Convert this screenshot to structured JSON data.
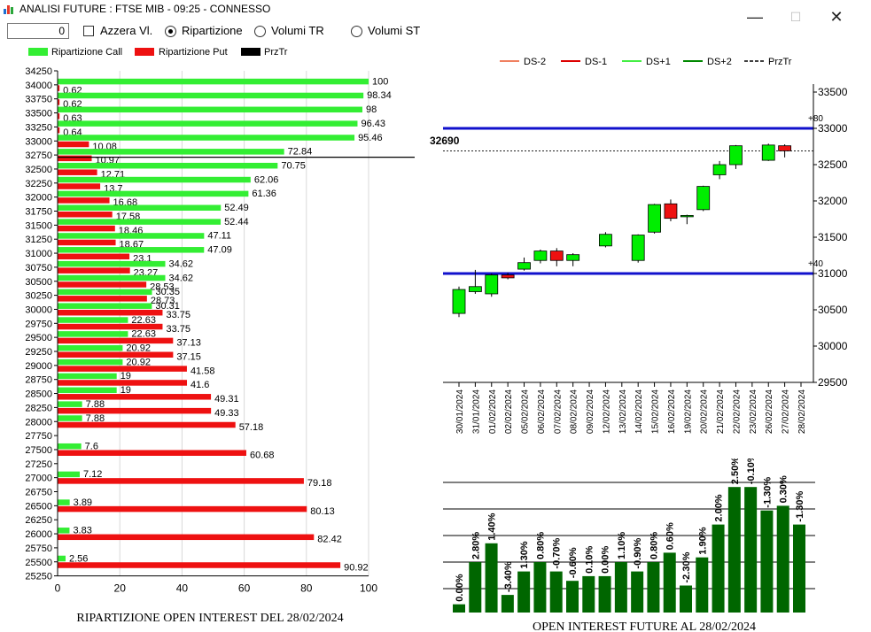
{
  "window": {
    "title": "ANALISI FUTURE : FTSE MIB - 09:25 - CONNESSO",
    "minimize": "—",
    "maximize": "☐",
    "close": "✕"
  },
  "toolbar": {
    "spin_value": "0",
    "reset_label": "Azzera Vl.",
    "radio_ripartizione": "Ripartizione",
    "radio_volumi_tr": "Volumi TR",
    "radio_volumi_st": "Volumi ST",
    "selected": "Ripartizione"
  },
  "colors": {
    "call": "#33ee33",
    "put": "#ee1111",
    "prztr": "#000000",
    "candle_up": "#00ee00",
    "candle_down": "#ee1111",
    "level_line": "#1111cc",
    "oi_bar": "#006600"
  },
  "left_chart": {
    "legend": [
      "Ripartizione Call",
      "Ripartizione Put",
      "PrzTr"
    ],
    "caption": "RIPARTIZIONE OPEN INTEREST DEL 28/02/2024",
    "x_ticks": [
      "0",
      "20",
      "40",
      "60",
      "80",
      "100"
    ]
  },
  "right_chart": {
    "legend": [
      "DS-2",
      "DS-1",
      "DS+1",
      "DS+2",
      "PrzTr"
    ],
    "price_label": "32690",
    "level_labels": [
      "+80",
      "+40"
    ],
    "y_ticks": [
      "33500",
      "33000",
      "32500",
      "32000",
      "31500",
      "31000",
      "30500",
      "30000",
      "29500"
    ]
  },
  "bottom_chart": {
    "caption": "OPEN INTEREST FUTURE AL 28/02/2024"
  },
  "chart_data": [
    {
      "type": "bar",
      "orientation": "horizontal",
      "title": "RIPARTIZIONE OPEN INTEREST DEL 28/02/2024",
      "xlim": [
        0,
        100
      ],
      "grid": true,
      "legend_position": "top-left",
      "prztr_strike": 32750,
      "categories": [
        "34250",
        "34000",
        "33750",
        "33500",
        "33250",
        "33000",
        "32750",
        "32500",
        "32250",
        "32000",
        "31750",
        "31500",
        "31250",
        "31000",
        "30750",
        "30500",
        "30250",
        "30000",
        "29750",
        "29500",
        "29250",
        "29000",
        "28750",
        "28500",
        "28250",
        "28000",
        "27750",
        "27500",
        "27250",
        "27000",
        "26750",
        "26500",
        "26250",
        "26000",
        "25750",
        "25500",
        "25250"
      ],
      "series": [
        {
          "name": "Ripartizione Call",
          "values": [
            null,
            100,
            98.34,
            98,
            96.43,
            95.46,
            72.84,
            70.75,
            62.06,
            61.36,
            52.49,
            52.44,
            47.11,
            47.09,
            34.62,
            34.62,
            30.35,
            30.31,
            22.63,
            22.63,
            20.92,
            20.92,
            19,
            19,
            7.88,
            7.88,
            null,
            7.6,
            null,
            7.12,
            null,
            3.89,
            null,
            3.83,
            null,
            2.56,
            null
          ]
        },
        {
          "name": "Ripartizione Put",
          "values": [
            null,
            0.62,
            0.62,
            0.63,
            0.64,
            10.08,
            10.97,
            12.71,
            13.7,
            16.68,
            17.58,
            18.46,
            18.67,
            23.1,
            23.27,
            28.53,
            28.73,
            33.75,
            33.75,
            37.13,
            37.15,
            41.58,
            41.6,
            49.31,
            49.33,
            57.18,
            null,
            60.68,
            null,
            79.18,
            null,
            80.13,
            null,
            82.42,
            null,
            90.92,
            null
          ]
        }
      ]
    },
    {
      "type": "candlestick",
      "ylim": [
        29500,
        33500
      ],
      "legend_position": "top",
      "series_names": [
        "DS-2",
        "DS-1",
        "DS+1",
        "DS+2",
        "PrzTr"
      ],
      "last_price": 32690,
      "levels": [
        {
          "label": "+80",
          "value": 33000
        },
        {
          "label": "+40",
          "value": 31000
        }
      ],
      "categories": [
        "30/01/2024",
        "31/01/2024",
        "01/02/2024",
        "02/02/2024",
        "05/02/2024",
        "06/02/2024",
        "07/02/2024",
        "08/02/2024",
        "09/02/2024",
        "12/02/2024",
        "13/02/2024",
        "14/02/2024",
        "15/02/2024",
        "16/02/2024",
        "19/02/2024",
        "20/02/2024",
        "21/02/2024",
        "22/02/2024",
        "23/02/2024",
        "26/02/2024",
        "27/02/2024",
        "28/02/2024"
      ],
      "candles": [
        {
          "o": 30450,
          "h": 30820,
          "l": 30400,
          "c": 30780
        },
        {
          "o": 30750,
          "h": 31050,
          "l": 30720,
          "c": 30820
        },
        {
          "o": 30720,
          "h": 31000,
          "l": 30680,
          "c": 30980
        },
        {
          "o": 30980,
          "h": 31010,
          "l": 30920,
          "c": 30940
        },
        {
          "o": 31060,
          "h": 31220,
          "l": 31040,
          "c": 31150
        },
        {
          "o": 31180,
          "h": 31330,
          "l": 31140,
          "c": 31310
        },
        {
          "o": 31310,
          "h": 31350,
          "l": 31100,
          "c": 31180
        },
        {
          "o": 31180,
          "h": 31280,
          "l": 31100,
          "c": 31260
        },
        null,
        {
          "o": 31380,
          "h": 31570,
          "l": 31360,
          "c": 31540
        },
        null,
        {
          "o": 31180,
          "h": 31540,
          "l": 31150,
          "c": 31530
        },
        {
          "o": 31570,
          "h": 31960,
          "l": 31550,
          "c": 31950
        },
        {
          "o": 31960,
          "h": 32020,
          "l": 31720,
          "c": 31760
        },
        {
          "o": 31790,
          "h": 31810,
          "l": 31680,
          "c": 31800
        },
        {
          "o": 31880,
          "h": 32210,
          "l": 31860,
          "c": 32200
        },
        {
          "o": 32360,
          "h": 32550,
          "l": 32300,
          "c": 32500
        },
        {
          "o": 32500,
          "h": 32770,
          "l": 32440,
          "c": 32760
        },
        null,
        {
          "o": 32560,
          "h": 32790,
          "l": 32550,
          "c": 32770
        },
        {
          "o": 32760,
          "h": 32780,
          "l": 32600,
          "c": 32690
        },
        null
      ]
    },
    {
      "type": "bar",
      "title": "OPEN INTEREST FUTURE AL 28/02/2024",
      "grid": true,
      "values": [
        0.0,
        2.8,
        1.4,
        -3.4,
        1.3,
        0.8,
        -0.7,
        -0.6,
        0.1,
        0.0,
        1.1,
        -0.9,
        0.8,
        0.6,
        -2.3,
        1.9,
        2.0,
        2.5,
        -0.1,
        -1.3,
        0.3,
        -1.3
      ],
      "labels": [
        "0.00%",
        "2.80%",
        "1.40%",
        "-3.40%",
        "1.30%",
        "0.80%",
        "-0.70%",
        "-0.60%",
        "0.10%",
        "0.00%",
        "1.10%",
        "-0.90%",
        "0.80%",
        "0.60%",
        "-2.30%",
        "1.90%",
        "2.00%",
        "2.50%",
        "-0.10%",
        "-1.30%",
        "0.30%",
        "-1.30%"
      ],
      "open_interest_level": [
        1,
        10,
        14,
        3,
        8,
        10,
        8,
        6,
        7,
        7,
        10,
        8,
        10,
        12,
        5,
        11,
        18,
        26,
        26,
        21,
        22,
        18
      ]
    }
  ]
}
